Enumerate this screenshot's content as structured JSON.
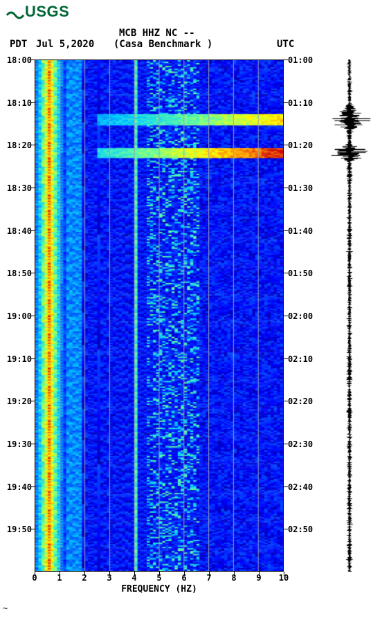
{
  "logo_text": "USGS",
  "header": {
    "tz_left": "PDT",
    "date": "Jul 5,2020",
    "station": "MCB HHZ NC --",
    "location": "(Casa Benchmark )",
    "tz_right": "UTC"
  },
  "x_axis": {
    "label": "FREQUENCY (HZ)",
    "min": 0,
    "max": 10,
    "ticks": [
      0,
      1,
      2,
      3,
      4,
      5,
      6,
      7,
      8,
      9,
      10
    ]
  },
  "y_axis": {
    "left_ticks": [
      "18:00",
      "18:10",
      "18:20",
      "18:30",
      "18:40",
      "18:50",
      "19:00",
      "19:10",
      "19:20",
      "19:30",
      "19:40",
      "19:50"
    ],
    "right_ticks": [
      "01:00",
      "01:10",
      "01:20",
      "01:30",
      "01:40",
      "01:50",
      "02:00",
      "02:10",
      "02:20",
      "02:30",
      "02:40",
      "02:50"
    ],
    "count": 12,
    "total_minutes": 120
  },
  "spectrogram": {
    "type": "heatmap",
    "width_cells": 80,
    "height_cells": 360,
    "colormap": [
      {
        "v": 0.0,
        "c": "#000080"
      },
      {
        "v": 0.15,
        "c": "#0000ff"
      },
      {
        "v": 0.35,
        "c": "#0066ff"
      },
      {
        "v": 0.5,
        "c": "#00ccff"
      },
      {
        "v": 0.65,
        "c": "#66ff99"
      },
      {
        "v": 0.78,
        "c": "#ffff00"
      },
      {
        "v": 0.88,
        "c": "#ff9900"
      },
      {
        "v": 1.0,
        "c": "#cc0000"
      }
    ],
    "gridline_color": "#9aa0b3",
    "features": {
      "low_freq_band": {
        "freq_range": [
          0,
          1.2
        ],
        "intensity": 0.88,
        "variance": 0.18
      },
      "vertical_line": {
        "freq": 4.0,
        "intensity": 0.6
      },
      "background_intensity": 0.18,
      "background_variance": 0.12,
      "events": [
        {
          "time_frac_start": 0.105,
          "time_frac_end": 0.125,
          "freq_start": 2.5,
          "freq_end": 10,
          "peak": 0.82
        },
        {
          "time_frac_start": 0.17,
          "time_frac_end": 0.19,
          "freq_start": 2.5,
          "freq_end": 10,
          "peak": 0.98
        }
      ],
      "speckle_band": {
        "freq_start": 4.5,
        "freq_end": 6.5,
        "intensity": 0.45,
        "density": 0.25
      }
    }
  },
  "seismogram": {
    "type": "waveform",
    "color": "#000000",
    "baseline_amp": 0.12,
    "events": [
      {
        "time_frac": 0.115,
        "amp": 0.9,
        "width": 0.015
      },
      {
        "time_frac": 0.18,
        "amp": 1.0,
        "width": 0.01
      }
    ]
  },
  "footnote": "~",
  "font": {
    "family": "monospace",
    "size_labels": 12,
    "size_header": 14,
    "weight": "bold",
    "color": "#000000"
  }
}
